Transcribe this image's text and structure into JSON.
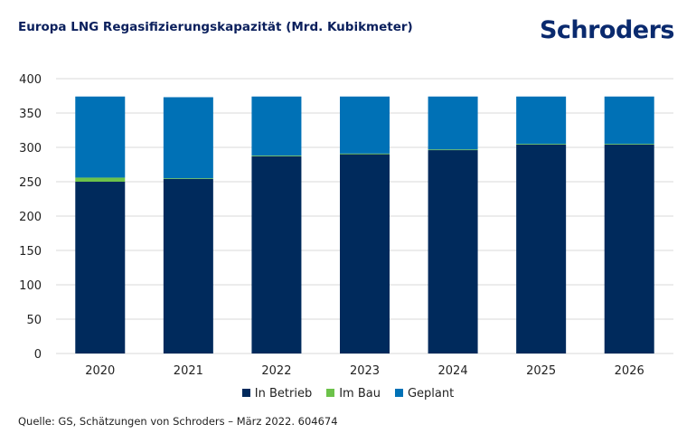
{
  "title": "Europa LNG Regasifizierungskapazität (Mrd. Kubikmeter)",
  "logo": "Schroders",
  "source": "Quelle: GS, Schätzungen von Schroders – März 2022. 604674",
  "chart_data": {
    "type": "bar",
    "stacked": true,
    "categories": [
      "2020",
      "2021",
      "2022",
      "2023",
      "2024",
      "2025",
      "2026"
    ],
    "series": [
      {
        "name": "In Betrieb",
        "color": "#002a5c",
        "values": [
          250,
          254,
          287,
          290,
          296,
          304,
          304
        ]
      },
      {
        "name": "Im Bau",
        "color": "#6cc24a",
        "values": [
          6,
          1,
          1,
          1,
          1,
          1,
          1
        ]
      },
      {
        "name": "Geplant",
        "color": "#0071b6",
        "values": [
          118,
          118,
          86,
          83,
          77,
          69,
          69
        ]
      }
    ],
    "ylim": [
      0,
      400
    ],
    "yticks": [
      0,
      50,
      100,
      150,
      200,
      250,
      300,
      350,
      400
    ],
    "grid": true,
    "legend": "bottom"
  }
}
